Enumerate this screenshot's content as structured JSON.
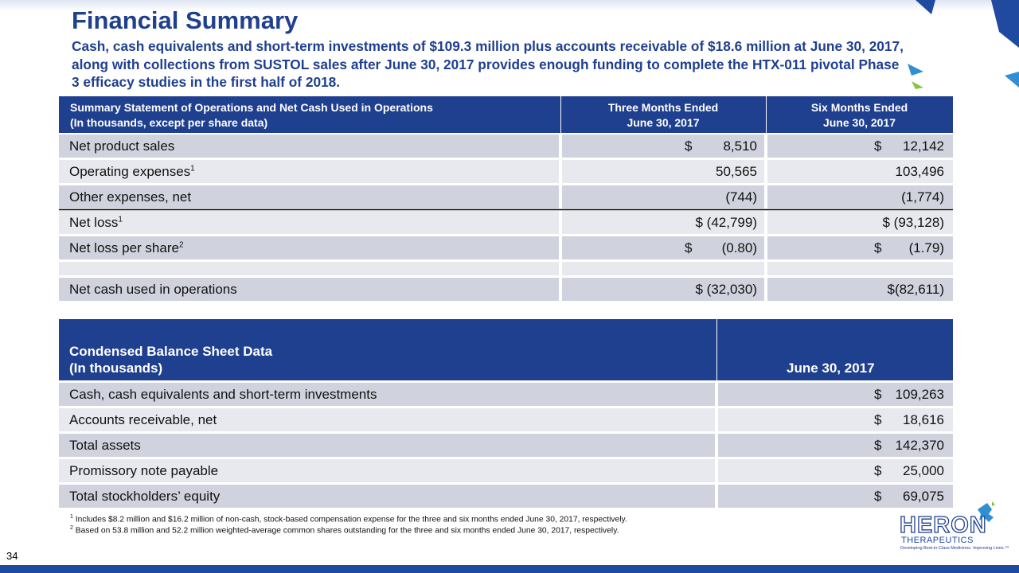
{
  "header": {
    "title": "Financial Summary",
    "subtitle": "Cash, cash equivalents and short-term investments of $109.3 million plus accounts receivable of $18.6 million at June 30, 2017, along with collections from SUSTOL sales after June 30, 2017 provides enough funding to complete the HTX-011 pivotal Phase 3 efficacy studies in the first half of 2018."
  },
  "operations_table": {
    "header": {
      "label": [
        "Summary Statement of Operations and Net Cash Used in Operations",
        "(In thousands, except per share data)"
      ],
      "columns": [
        [
          "Three Months Ended",
          "June 30, 2017"
        ],
        [
          "Six Months Ended",
          "June 30, 2017"
        ]
      ]
    },
    "rows": [
      {
        "label": "Net product sales",
        "cells": [
          {
            "prefix": "$",
            "value": "8,510"
          },
          {
            "prefix": "$",
            "value": "12,142"
          }
        ]
      },
      {
        "label": "Operating expenses",
        "note": "1",
        "cells": [
          {
            "value": "50,565"
          },
          {
            "value": "103,496"
          }
        ]
      },
      {
        "label": "Other expenses, net",
        "cells": [
          {
            "value": "(744)"
          },
          {
            "value": "(1,774)"
          }
        ]
      },
      {
        "label": "Net loss",
        "note": "1",
        "cells": [
          {
            "value": "$ (42,799)"
          },
          {
            "value": "$ (93,128)"
          }
        ]
      },
      {
        "label": "Net loss per share",
        "note": "2",
        "cells": [
          {
            "prefix": "$",
            "value": "(0.80)"
          },
          {
            "prefix": "$",
            "value": "(1.79)"
          }
        ]
      },
      {
        "label": "Net cash used in operations",
        "cells": [
          {
            "value": "$ (32,030)"
          },
          {
            "value": "$(82,611)"
          }
        ]
      }
    ]
  },
  "balance_table": {
    "header": {
      "label": [
        "Condensed Balance Sheet Data",
        "(In thousands)"
      ],
      "column": "June 30, 2017"
    },
    "rows": [
      {
        "label": "Cash, cash equivalents and short-term investments",
        "cell": {
          "prefix": "$",
          "value": "109,263"
        }
      },
      {
        "label": "Accounts receivable, net",
        "cell": {
          "prefix": "$",
          "value": "18,616"
        }
      },
      {
        "label": "Total assets",
        "cell": {
          "prefix": "$",
          "value": "142,370"
        }
      },
      {
        "label": "Promissory note payable",
        "cell": {
          "prefix": "$",
          "value": "25,000"
        }
      },
      {
        "label": "Total stockholders’ equity",
        "cell": {
          "prefix": "$",
          "value": "69,075"
        }
      }
    ]
  },
  "footnotes": [
    {
      "mark": "1",
      "text": "Includes $8.2 million and $16.2 million of non-cash, stock-based compensation expense for the three and six months ended June 30, 2017, respectively."
    },
    {
      "mark": "2",
      "text": "Based on 53.8 million and 52.2 million weighted-average common shares outstanding for the three and six months ended June 30, 2017, respectively."
    }
  ],
  "page_number": "34",
  "logo": {
    "name": "HERON",
    "subname": "THERAPEUTICS",
    "tagline": "Developing Best-in-Class Medicines. Improving Lives.™"
  }
}
